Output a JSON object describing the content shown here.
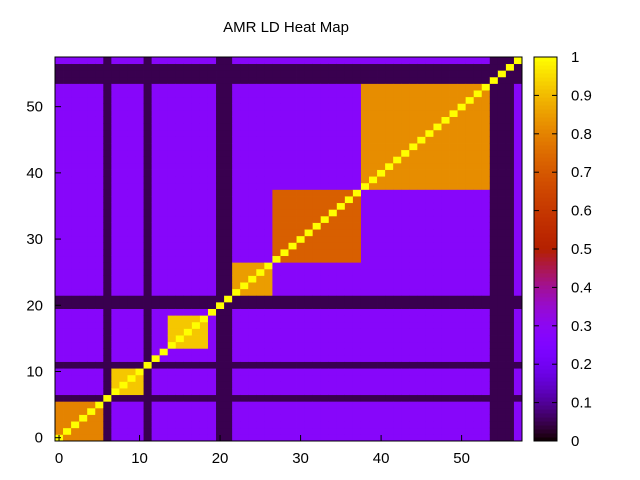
{
  "chart_data": {
    "type": "heatmap",
    "title": "AMR LD Heat Map",
    "xlabel": "",
    "ylabel": "",
    "grid_size": 58,
    "xlim": [
      -0.5,
      57.5
    ],
    "ylim": [
      -0.5,
      57.5
    ],
    "x_ticks": [
      0,
      10,
      20,
      30,
      40,
      50
    ],
    "y_ticks": [
      0,
      10,
      20,
      30,
      40,
      50
    ],
    "colorbar": {
      "range": [
        0,
        1
      ],
      "ticks": [
        "0",
        "0.1",
        "0.2",
        "0.3",
        "0.4",
        "0.5",
        "0.6",
        "0.7",
        "0.8",
        "0.9",
        "1"
      ],
      "colormap": "gnuplot-hot"
    },
    "blocks": [
      {
        "range": [
          0,
          5
        ],
        "value": 0.8
      },
      {
        "range": [
          7,
          10
        ],
        "value": 0.92
      },
      {
        "range": [
          14,
          18
        ],
        "value": 0.92
      },
      {
        "range": [
          22,
          26
        ],
        "value": 0.85
      },
      {
        "range": [
          27,
          37
        ],
        "value": 0.72
      },
      {
        "range": [
          38,
          53
        ],
        "value": 0.82
      },
      {
        "range": [
          57,
          57
        ],
        "value": 0.97
      }
    ],
    "off_block_value": 0.28,
    "zero_rows": [
      6,
      11,
      20,
      21,
      54,
      55,
      56
    ],
    "legend": "none",
    "grid": false
  }
}
